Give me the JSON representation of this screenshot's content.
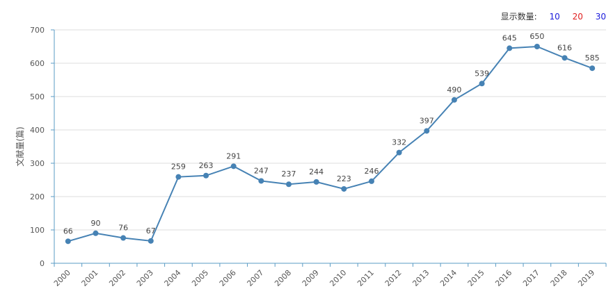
{
  "controls": {
    "display_count_label": "显示数量:",
    "options": [
      {
        "label": "10",
        "color": "#1a1adb"
      },
      {
        "label": "20",
        "color": "#e02020"
      },
      {
        "label": "30",
        "color": "#1a1adb"
      }
    ]
  },
  "chart_data": {
    "type": "line",
    "title": "",
    "xlabel": "",
    "ylabel": "文献量(篇)",
    "categories": [
      "2000",
      "2001",
      "2002",
      "2003",
      "2004",
      "2005",
      "2006",
      "2007",
      "2008",
      "2009",
      "2010",
      "2011",
      "2012",
      "2013",
      "2014",
      "2015",
      "2016",
      "2017",
      "2018",
      "2019"
    ],
    "series": [
      {
        "name": "文献量",
        "values": [
          66,
          90,
          76,
          67,
          259,
          263,
          291,
          247,
          237,
          244,
          223,
          246,
          332,
          397,
          490,
          539,
          645,
          650,
          616,
          585
        ]
      }
    ],
    "ylim": [
      0,
      700
    ],
    "yticks": [
      0,
      100,
      200,
      300,
      400,
      500,
      600,
      700
    ],
    "grid": true,
    "colors": {
      "line": "#4682b4",
      "axis": "#5a9bc4",
      "grid": "#dddddd"
    }
  }
}
